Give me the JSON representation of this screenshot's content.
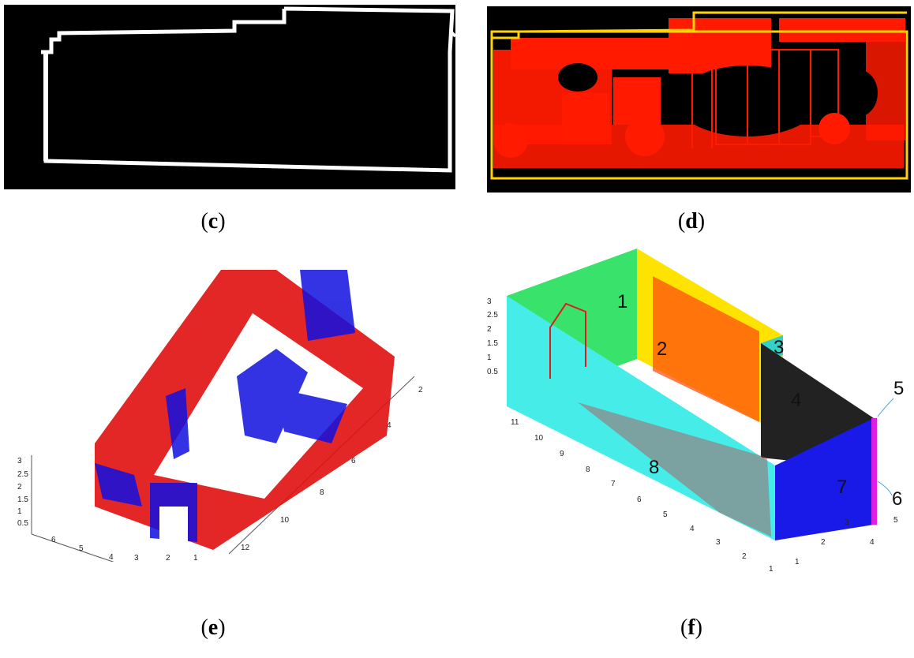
{
  "figure": {
    "captions": {
      "c": "(c)",
      "d": "(d)",
      "e": "(e)",
      "f": "(f)"
    },
    "panel_c": {
      "background": "#000000",
      "outline_color": "#ffffff"
    },
    "panel_d": {
      "background": "#000000",
      "fill_color": "#ff1a00",
      "edge_color": "#ffd200"
    },
    "panel_e": {
      "colors": {
        "wall_points": "#e01010",
        "object_points": "#1010e0"
      },
      "z_ticks": [
        "3",
        "2.5",
        "2",
        "1.5",
        "1",
        "0.5"
      ],
      "x_ticks": [
        "6",
        "5",
        "4",
        "3",
        "2",
        "1"
      ],
      "y_ticks": [
        "2",
        "4",
        "6",
        "8",
        "10",
        "12"
      ]
    },
    "panel_f": {
      "colors": {
        "wall_1": "#39e36b",
        "wall_2": "#ffe300",
        "wall_3": "#35d0c6",
        "wall_4": "#222222",
        "wall_5": "#e020e0",
        "wall_6": "#e020e0",
        "wall_7": "#1a1ae8",
        "wall_8": "#46ece8",
        "points": "#e01a1a"
      },
      "labels": [
        "1",
        "2",
        "3",
        "4",
        "5",
        "6",
        "7",
        "8"
      ],
      "z_ticks": [
        "3",
        "2.5",
        "2",
        "1.5",
        "1",
        "0.5"
      ],
      "y_ticks": [
        "11",
        "10",
        "9",
        "8",
        "7",
        "6",
        "5",
        "4",
        "3",
        "2",
        "1"
      ],
      "x_ticks": [
        "1",
        "2",
        "3",
        "4",
        "5"
      ]
    }
  }
}
